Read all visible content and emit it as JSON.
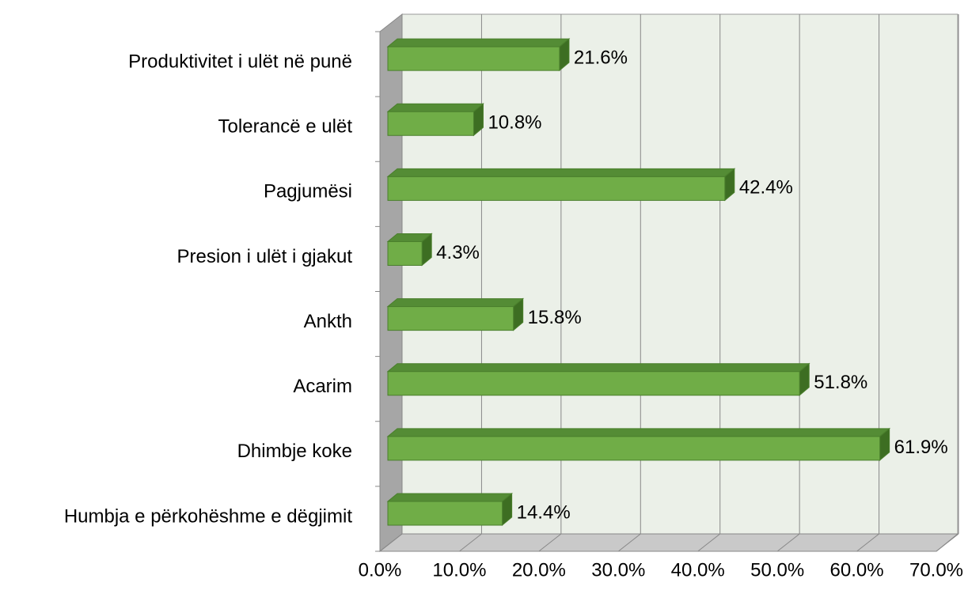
{
  "chart_data": {
    "type": "bar3d_horizontal",
    "categories": [
      "Produktivitet i ulët në punë",
      "Tolerancë e ulët",
      "Pagjumësi",
      "Presion i ulët i gjakut",
      "Ankth",
      "Acarim",
      "Dhimbje koke",
      "Humbja e përkohëshme e dëgjimit"
    ],
    "values": [
      21.6,
      10.8,
      42.4,
      4.3,
      15.8,
      51.8,
      61.9,
      14.4
    ],
    "value_labels": [
      "21.6%",
      "10.8%",
      "42.4%",
      "4.3%",
      "15.8%",
      "51.8%",
      "61.9%",
      "14.4%"
    ],
    "color": "#70ad47",
    "xlim": [
      0,
      70
    ],
    "xticks": [
      {
        "value": 0,
        "label": "0.0%"
      },
      {
        "value": 10,
        "label": "10.0%"
      },
      {
        "value": 20,
        "label": "20.0%"
      },
      {
        "value": 30,
        "label": "30.0%"
      },
      {
        "value": 40,
        "label": "40.0%"
      },
      {
        "value": 50,
        "label": "50.0%"
      },
      {
        "value": 60,
        "label": "60.0%"
      },
      {
        "value": 70,
        "label": "70.0%"
      }
    ],
    "grid": true
  }
}
